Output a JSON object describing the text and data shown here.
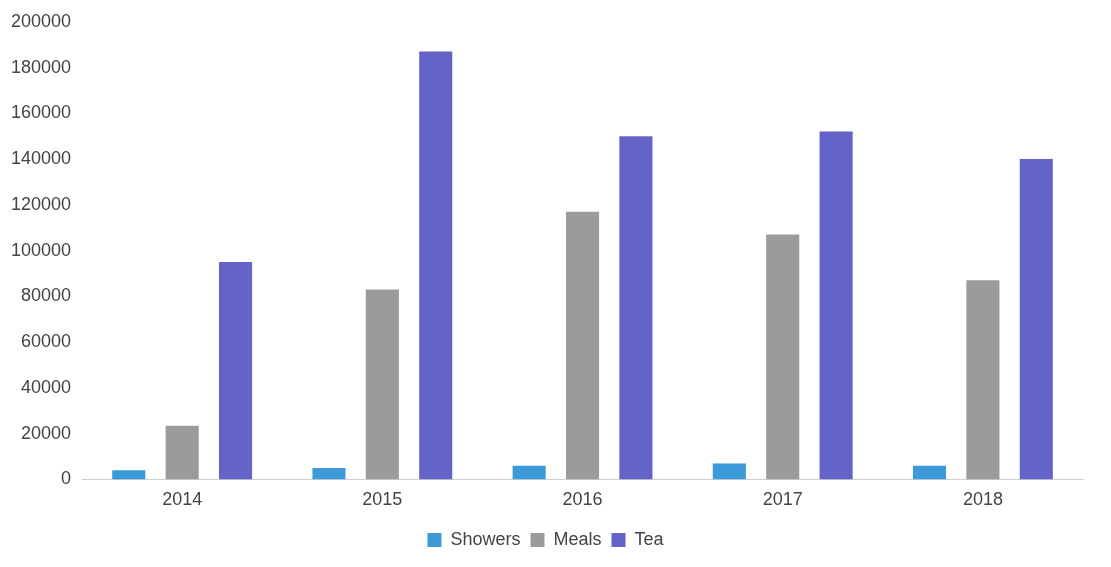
{
  "chart_data": {
    "type": "bar",
    "categories": [
      "2014",
      "2015",
      "2016",
      "2017",
      "2018"
    ],
    "series": [
      {
        "name": "Showers",
        "color": "#3d9ad8",
        "values": [
          4000,
          5000,
          6000,
          7000,
          6000
        ]
      },
      {
        "name": "Meals",
        "color": "#9b9b9b",
        "values": [
          23500,
          83000,
          117000,
          107000,
          87000
        ]
      },
      {
        "name": "Tea",
        "color": "#6464c8",
        "values": [
          95000,
          187000,
          150000,
          152000,
          140000
        ]
      }
    ],
    "ylim": [
      0,
      200000
    ],
    "yticks": [
      0,
      20000,
      40000,
      60000,
      80000,
      100000,
      120000,
      140000,
      160000,
      180000,
      200000
    ],
    "legend": "bottom"
  }
}
